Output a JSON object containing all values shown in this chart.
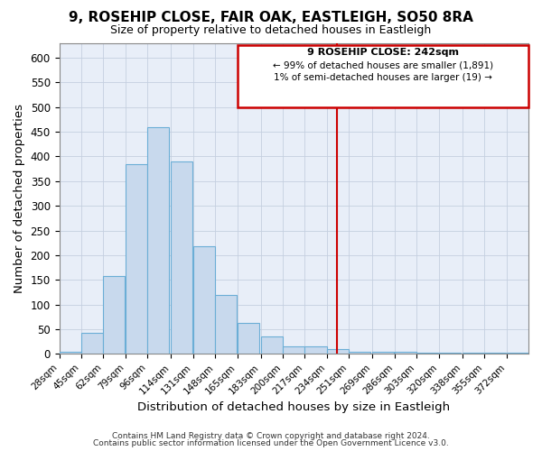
{
  "title": "9, ROSEHIP CLOSE, FAIR OAK, EASTLEIGH, SO50 8RA",
  "subtitle": "Size of property relative to detached houses in Eastleigh",
  "xlabel": "Distribution of detached houses by size in Eastleigh",
  "ylabel": "Number of detached properties",
  "bar_color": "#c8d9ed",
  "bar_edge_color": "#6baed6",
  "bg_color": "#e8eef8",
  "grid_color": "#c5cfe0",
  "red_line_x": 242,
  "red_line_color": "#cc0000",
  "annotation_title": "9 ROSEHIP CLOSE: 242sqm",
  "annotation_line1": "← 99% of detached houses are smaller (1,891)",
  "annotation_line2": "1% of semi-detached houses are larger (19) →",
  "annotation_box_color": "#cc0000",
  "bins": [
    28,
    45,
    62,
    79,
    96,
    114,
    131,
    148,
    165,
    183,
    200,
    217,
    234,
    251,
    269,
    286,
    303,
    320,
    338,
    355,
    372
  ],
  "counts": [
    5,
    42,
    158,
    385,
    460,
    390,
    218,
    120,
    62,
    35,
    15,
    15,
    10,
    5,
    5,
    5,
    2,
    2,
    2,
    2,
    2
  ],
  "ylim": [
    0,
    630
  ],
  "yticks": [
    0,
    50,
    100,
    150,
    200,
    250,
    300,
    350,
    400,
    450,
    500,
    550,
    600
  ],
  "footer_line1": "Contains HM Land Registry data © Crown copyright and database right 2024.",
  "footer_line2": "Contains public sector information licensed under the Open Government Licence v3.0."
}
